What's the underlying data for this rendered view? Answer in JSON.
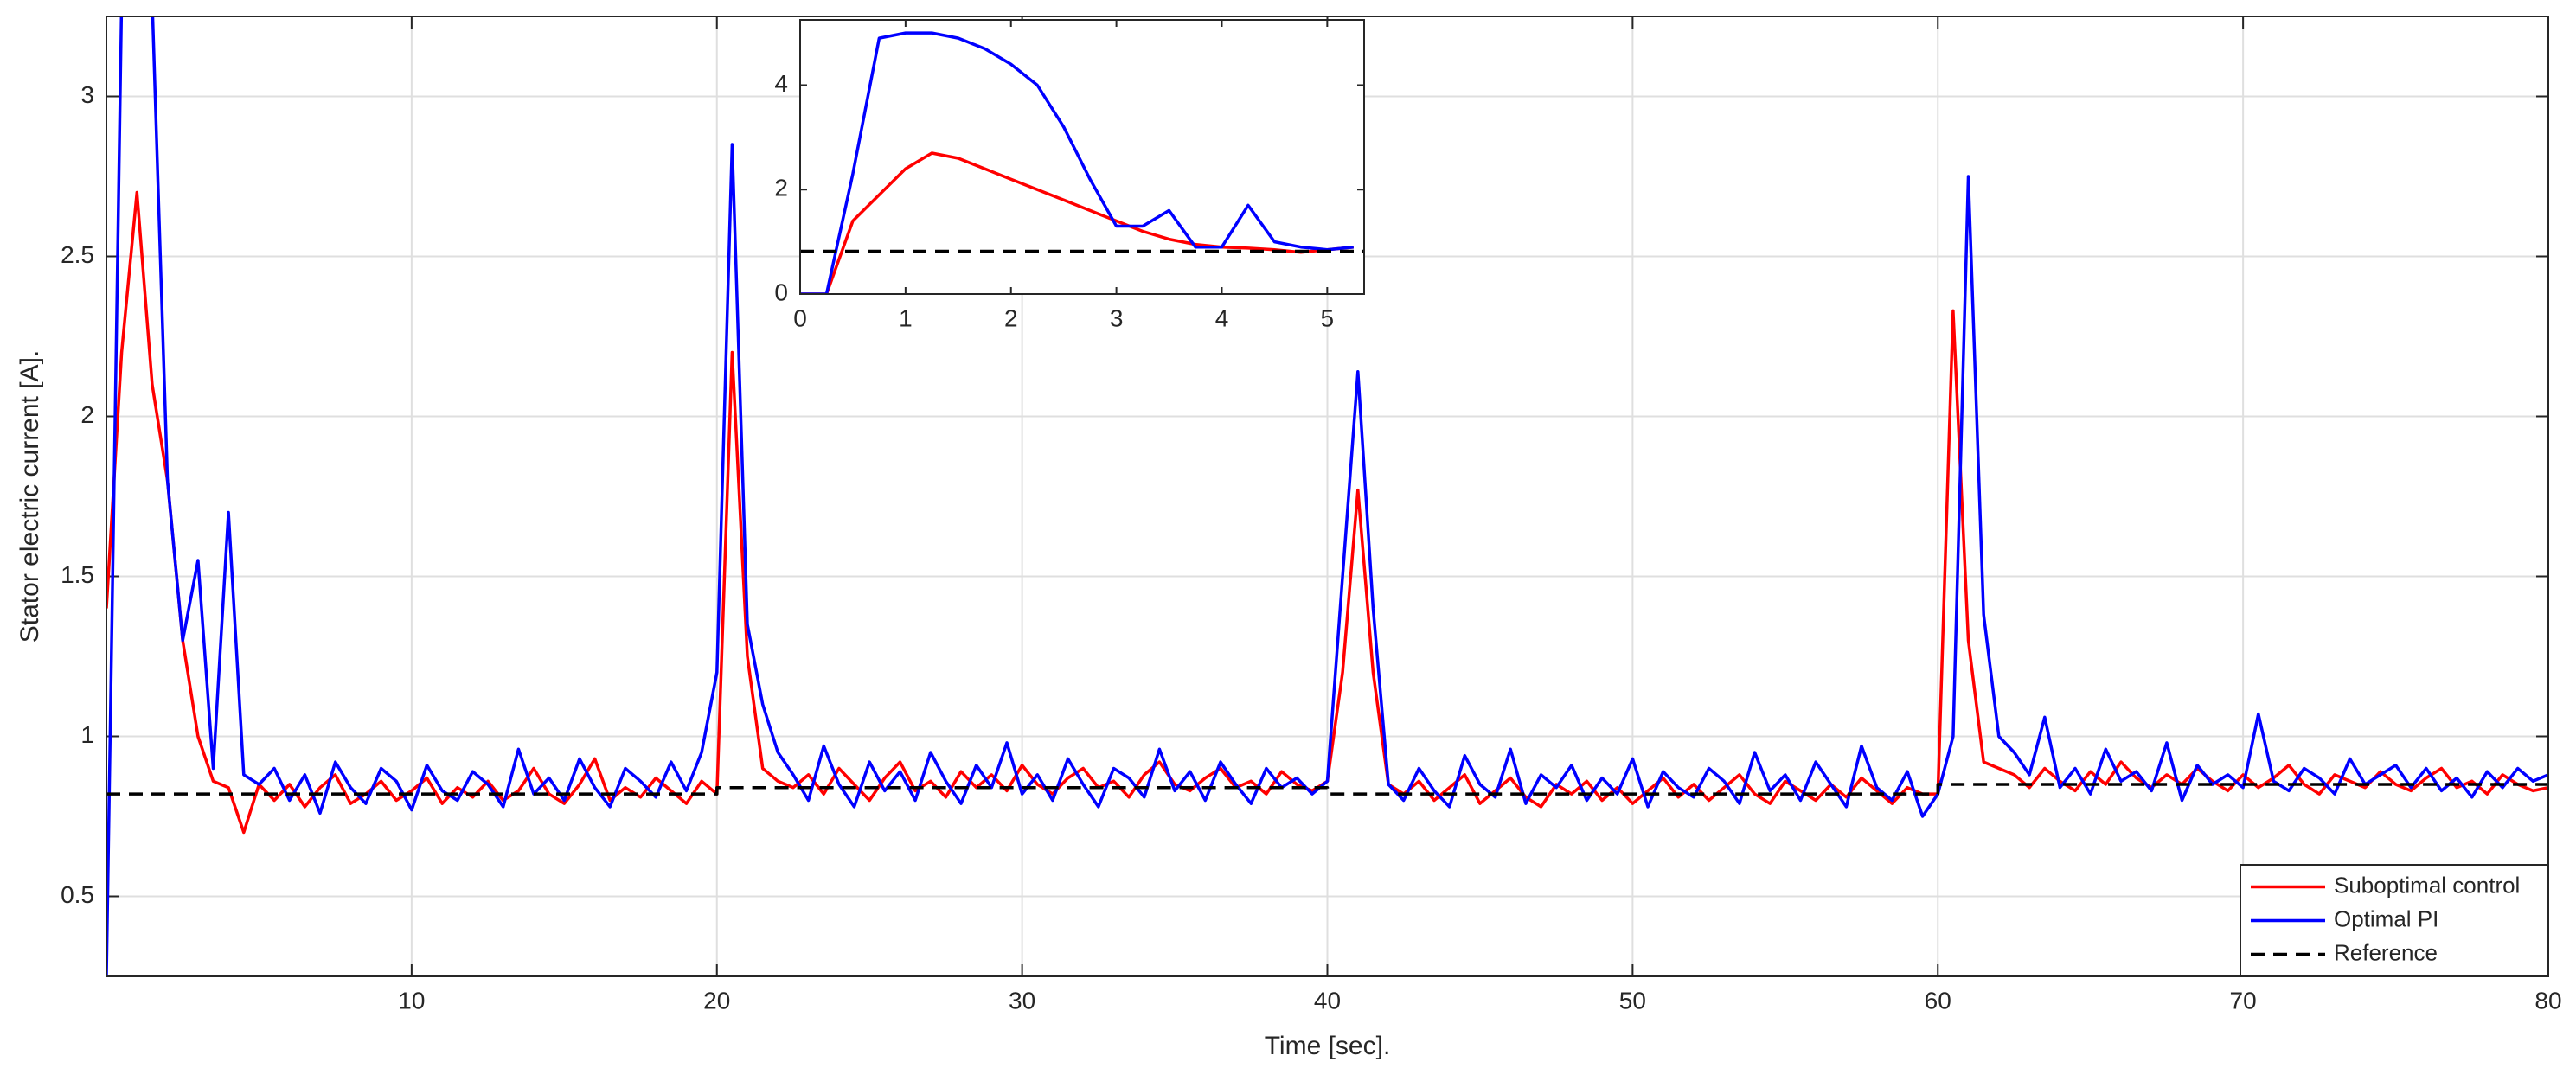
{
  "chart_data": [
    {
      "type": "line",
      "xlabel": "Time [sec].",
      "ylabel": "Stator electric current [A].",
      "xlim": [
        0,
        80
      ],
      "ylim": [
        0.25,
        3.25
      ],
      "xticks": [
        10,
        20,
        30,
        40,
        50,
        60,
        70,
        80
      ],
      "yticks": [
        0.5,
        1,
        1.5,
        2,
        2.5,
        3
      ],
      "grid": true,
      "legend": "lower right",
      "x": [
        0,
        0.5,
        1,
        1.5,
        2,
        2.5,
        3,
        3.5,
        4,
        4.5,
        5,
        5.5,
        6,
        6.5,
        7,
        7.5,
        8,
        8.5,
        9,
        9.5,
        10,
        10.5,
        11,
        11.5,
        12,
        12.5,
        13,
        13.5,
        14,
        14.5,
        15,
        15.5,
        16,
        16.5,
        17,
        17.5,
        18,
        18.5,
        19,
        19.5,
        20,
        20.5,
        21,
        21.5,
        22,
        22.5,
        23,
        23.5,
        24,
        24.5,
        25,
        25.5,
        26,
        26.5,
        27,
        27.5,
        28,
        28.5,
        29,
        29.5,
        30,
        30.5,
        31,
        31.5,
        32,
        32.5,
        33,
        33.5,
        34,
        34.5,
        35,
        35.5,
        36,
        36.5,
        37,
        37.5,
        38,
        38.5,
        39,
        39.5,
        40,
        40.5,
        41,
        41.5,
        42,
        42.5,
        43,
        43.5,
        44,
        44.5,
        45,
        45.5,
        46,
        46.5,
        47,
        47.5,
        48,
        48.5,
        49,
        49.5,
        50,
        50.5,
        51,
        51.5,
        52,
        52.5,
        53,
        53.5,
        54,
        54.5,
        55,
        55.5,
        56,
        56.5,
        57,
        57.5,
        58,
        58.5,
        59,
        59.5,
        60,
        60.5,
        61,
        61.5,
        62,
        62.5,
        63,
        63.5,
        64,
        64.5,
        65,
        65.5,
        66,
        66.5,
        67,
        67.5,
        68,
        68.5,
        69,
        69.5,
        70,
        70.5,
        71,
        71.5,
        72,
        72.5,
        73,
        73.5,
        74,
        74.5,
        75,
        75.5,
        76,
        76.5,
        77,
        77.5,
        78,
        78.5,
        79,
        79.5,
        80
      ],
      "series": [
        {
          "name": "Suboptimal control",
          "color": "#ff0000",
          "values": [
            1.4,
            2.2,
            2.7,
            2.1,
            1.8,
            1.3,
            1.0,
            0.86,
            0.84,
            0.7,
            0.85,
            0.8,
            0.85,
            0.78,
            0.84,
            0.88,
            0.79,
            0.82,
            0.86,
            0.8,
            0.83,
            0.87,
            0.79,
            0.84,
            0.81,
            0.86,
            0.8,
            0.83,
            0.9,
            0.82,
            0.79,
            0.85,
            0.93,
            0.8,
            0.84,
            0.81,
            0.87,
            0.83,
            0.79,
            0.86,
            0.82,
            2.2,
            1.25,
            0.9,
            0.86,
            0.84,
            0.88,
            0.82,
            0.9,
            0.85,
            0.8,
            0.87,
            0.92,
            0.83,
            0.86,
            0.81,
            0.89,
            0.84,
            0.88,
            0.83,
            0.91,
            0.85,
            0.82,
            0.87,
            0.9,
            0.84,
            0.86,
            0.81,
            0.88,
            0.92,
            0.85,
            0.83,
            0.87,
            0.9,
            0.84,
            0.86,
            0.82,
            0.89,
            0.85,
            0.83,
            0.86,
            1.2,
            1.77,
            1.2,
            0.85,
            0.82,
            0.86,
            0.8,
            0.84,
            0.88,
            0.79,
            0.83,
            0.87,
            0.81,
            0.78,
            0.85,
            0.82,
            0.86,
            0.8,
            0.84,
            0.79,
            0.83,
            0.87,
            0.81,
            0.85,
            0.8,
            0.84,
            0.88,
            0.82,
            0.79,
            0.86,
            0.83,
            0.8,
            0.85,
            0.81,
            0.87,
            0.83,
            0.79,
            0.84,
            0.82,
            0.82,
            2.33,
            1.3,
            0.92,
            0.9,
            0.88,
            0.84,
            0.9,
            0.86,
            0.83,
            0.89,
            0.85,
            0.92,
            0.87,
            0.84,
            0.88,
            0.85,
            0.9,
            0.86,
            0.83,
            0.88,
            0.84,
            0.87,
            0.91,
            0.85,
            0.82,
            0.88,
            0.86,
            0.84,
            0.89,
            0.85,
            0.83,
            0.87,
            0.9,
            0.84,
            0.86,
            0.82,
            0.88,
            0.85,
            0.83,
            0.84
          ]
        },
        {
          "name": "Optimal PI",
          "color": "#0000ff",
          "values": [
            0.25,
            3.3,
            3.3,
            3.3,
            1.8,
            1.3,
            1.55,
            0.9,
            1.7,
            0.88,
            0.85,
            0.9,
            0.8,
            0.88,
            0.76,
            0.92,
            0.84,
            0.79,
            0.9,
            0.86,
            0.77,
            0.91,
            0.83,
            0.8,
            0.89,
            0.85,
            0.78,
            0.96,
            0.82,
            0.87,
            0.8,
            0.93,
            0.84,
            0.78,
            0.9,
            0.86,
            0.81,
            0.92,
            0.83,
            0.95,
            1.2,
            2.85,
            1.35,
            1.1,
            0.95,
            0.88,
            0.8,
            0.97,
            0.85,
            0.78,
            0.92,
            0.83,
            0.89,
            0.8,
            0.95,
            0.86,
            0.79,
            0.91,
            0.84,
            0.98,
            0.82,
            0.88,
            0.8,
            0.93,
            0.85,
            0.78,
            0.9,
            0.87,
            0.81,
            0.96,
            0.83,
            0.89,
            0.8,
            0.92,
            0.85,
            0.79,
            0.9,
            0.84,
            0.87,
            0.82,
            0.86,
            1.5,
            2.14,
            1.4,
            0.85,
            0.8,
            0.9,
            0.83,
            0.78,
            0.94,
            0.85,
            0.81,
            0.96,
            0.79,
            0.88,
            0.84,
            0.91,
            0.8,
            0.87,
            0.82,
            0.93,
            0.78,
            0.89,
            0.84,
            0.81,
            0.9,
            0.86,
            0.79,
            0.95,
            0.83,
            0.88,
            0.8,
            0.92,
            0.85,
            0.78,
            0.97,
            0.84,
            0.8,
            0.89,
            0.75,
            0.82,
            1.0,
            2.75,
            1.38,
            1.0,
            0.95,
            0.88,
            1.06,
            0.84,
            0.9,
            0.82,
            0.96,
            0.86,
            0.89,
            0.83,
            0.98,
            0.8,
            0.91,
            0.85,
            0.88,
            0.84,
            1.07,
            0.86,
            0.83,
            0.9,
            0.87,
            0.82,
            0.93,
            0.85,
            0.88,
            0.91,
            0.84,
            0.9,
            0.83,
            0.87,
            0.81,
            0.89,
            0.84,
            0.9,
            0.86,
            0.88
          ]
        },
        {
          "name": "Reference",
          "color": "#000000",
          "dash": "dashed",
          "x": [
            0,
            20,
            20,
            40,
            40,
            60,
            60,
            80
          ],
          "values": [
            0.82,
            0.82,
            0.84,
            0.84,
            0.82,
            0.82,
            0.85,
            0.85
          ]
        }
      ]
    },
    {
      "type": "line",
      "xlim": [
        0,
        5.35
      ],
      "ylim": [
        0,
        5.25
      ],
      "xticks": [
        0,
        1,
        2,
        3,
        4,
        5
      ],
      "yticks": [
        0,
        2,
        4
      ],
      "grid": false,
      "x": [
        0,
        0.25,
        0.5,
        0.75,
        1,
        1.25,
        1.5,
        1.75,
        2,
        2.25,
        2.5,
        2.75,
        3,
        3.25,
        3.5,
        3.75,
        4,
        4.25,
        4.5,
        4.75,
        5,
        5.25
      ],
      "series": [
        {
          "color": "#ff0000",
          "values": [
            0,
            0,
            1.4,
            1.9,
            2.4,
            2.7,
            2.6,
            2.4,
            2.2,
            2.0,
            1.8,
            1.6,
            1.4,
            1.2,
            1.05,
            0.95,
            0.9,
            0.88,
            0.85,
            0.8,
            0.85,
            0.9
          ]
        },
        {
          "color": "#0000ff",
          "values": [
            0,
            0,
            2.3,
            4.9,
            5.0,
            5.0,
            4.9,
            4.7,
            4.4,
            4.0,
            3.2,
            2.2,
            1.3,
            1.3,
            1.6,
            0.9,
            0.9,
            1.7,
            1.0,
            0.9,
            0.85,
            0.9
          ]
        },
        {
          "color": "#000000",
          "dash": "dashed",
          "x": [
            0,
            5.35
          ],
          "values": [
            0.82,
            0.82
          ]
        }
      ]
    }
  ]
}
